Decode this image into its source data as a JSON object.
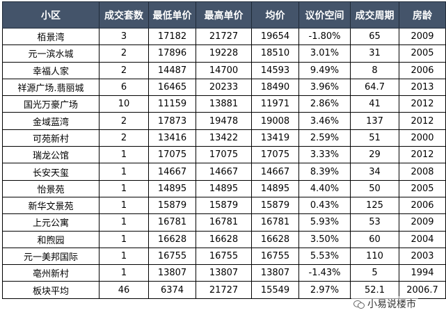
{
  "table": {
    "headers": [
      "小区",
      "成交套数",
      "最低单价",
      "最高单价",
      "均价",
      "议价空间",
      "成交周期",
      "房龄"
    ],
    "rows": [
      [
        "栢景湾",
        "3",
        "17182",
        "21727",
        "19654",
        "-1.80%",
        "65",
        "2009"
      ],
      [
        "元一滨水城",
        "2",
        "17896",
        "19228",
        "18510",
        "3.01%",
        "31",
        "2005"
      ],
      [
        "幸福人家",
        "2",
        "14487",
        "14700",
        "14593",
        "9.49%",
        "8",
        "2006"
      ],
      [
        "祥源广场.翡丽城",
        "6",
        "16465",
        "20233",
        "18490",
        "3.96%",
        "64.7",
        "2013"
      ],
      [
        "国光万豪广场",
        "10",
        "11159",
        "13881",
        "11971",
        "2.86%",
        "41",
        "2012"
      ],
      [
        "金域蓝湾",
        "2",
        "17873",
        "19478",
        "19008",
        "3.46%",
        "137",
        "2012"
      ],
      [
        "可苑新村",
        "2",
        "13416",
        "13422",
        "13419",
        "2.59%",
        "51",
        "2000"
      ],
      [
        "瑞龙公馆",
        "1",
        "17075",
        "17075",
        "17075",
        "3.33%",
        "29",
        "2012"
      ],
      [
        "长安天玺",
        "1",
        "14667",
        "14667",
        "14667",
        "8.39%",
        "34",
        "2008"
      ],
      [
        "怡景苑",
        "1",
        "14895",
        "14895",
        "14895",
        "4.40%",
        "50",
        "2005"
      ],
      [
        "新华文景苑",
        "1",
        "15879",
        "15879",
        "15879",
        "0.43%",
        "125",
        "2006"
      ],
      [
        "上元公寓",
        "1",
        "16781",
        "16781",
        "16781",
        "5.93%",
        "53",
        "2009"
      ],
      [
        "和煦园",
        "1",
        "16628",
        "16628",
        "16628",
        "3.50%",
        "60",
        "2004"
      ],
      [
        "元一美邦国际",
        "1",
        "16755",
        "16755",
        "16755",
        "5.53%",
        "110",
        "2003"
      ],
      [
        "亳州新村",
        "1",
        "13807",
        "13807",
        "13807",
        "-1.43%",
        "5",
        "1994"
      ],
      [
        "板块平均",
        "46",
        "6374",
        "21727",
        "15549",
        "2.97%",
        "52.1",
        "2006.7"
      ]
    ]
  },
  "watermark": {
    "text": "小易说楼市",
    "icon": "wechat-icon"
  }
}
